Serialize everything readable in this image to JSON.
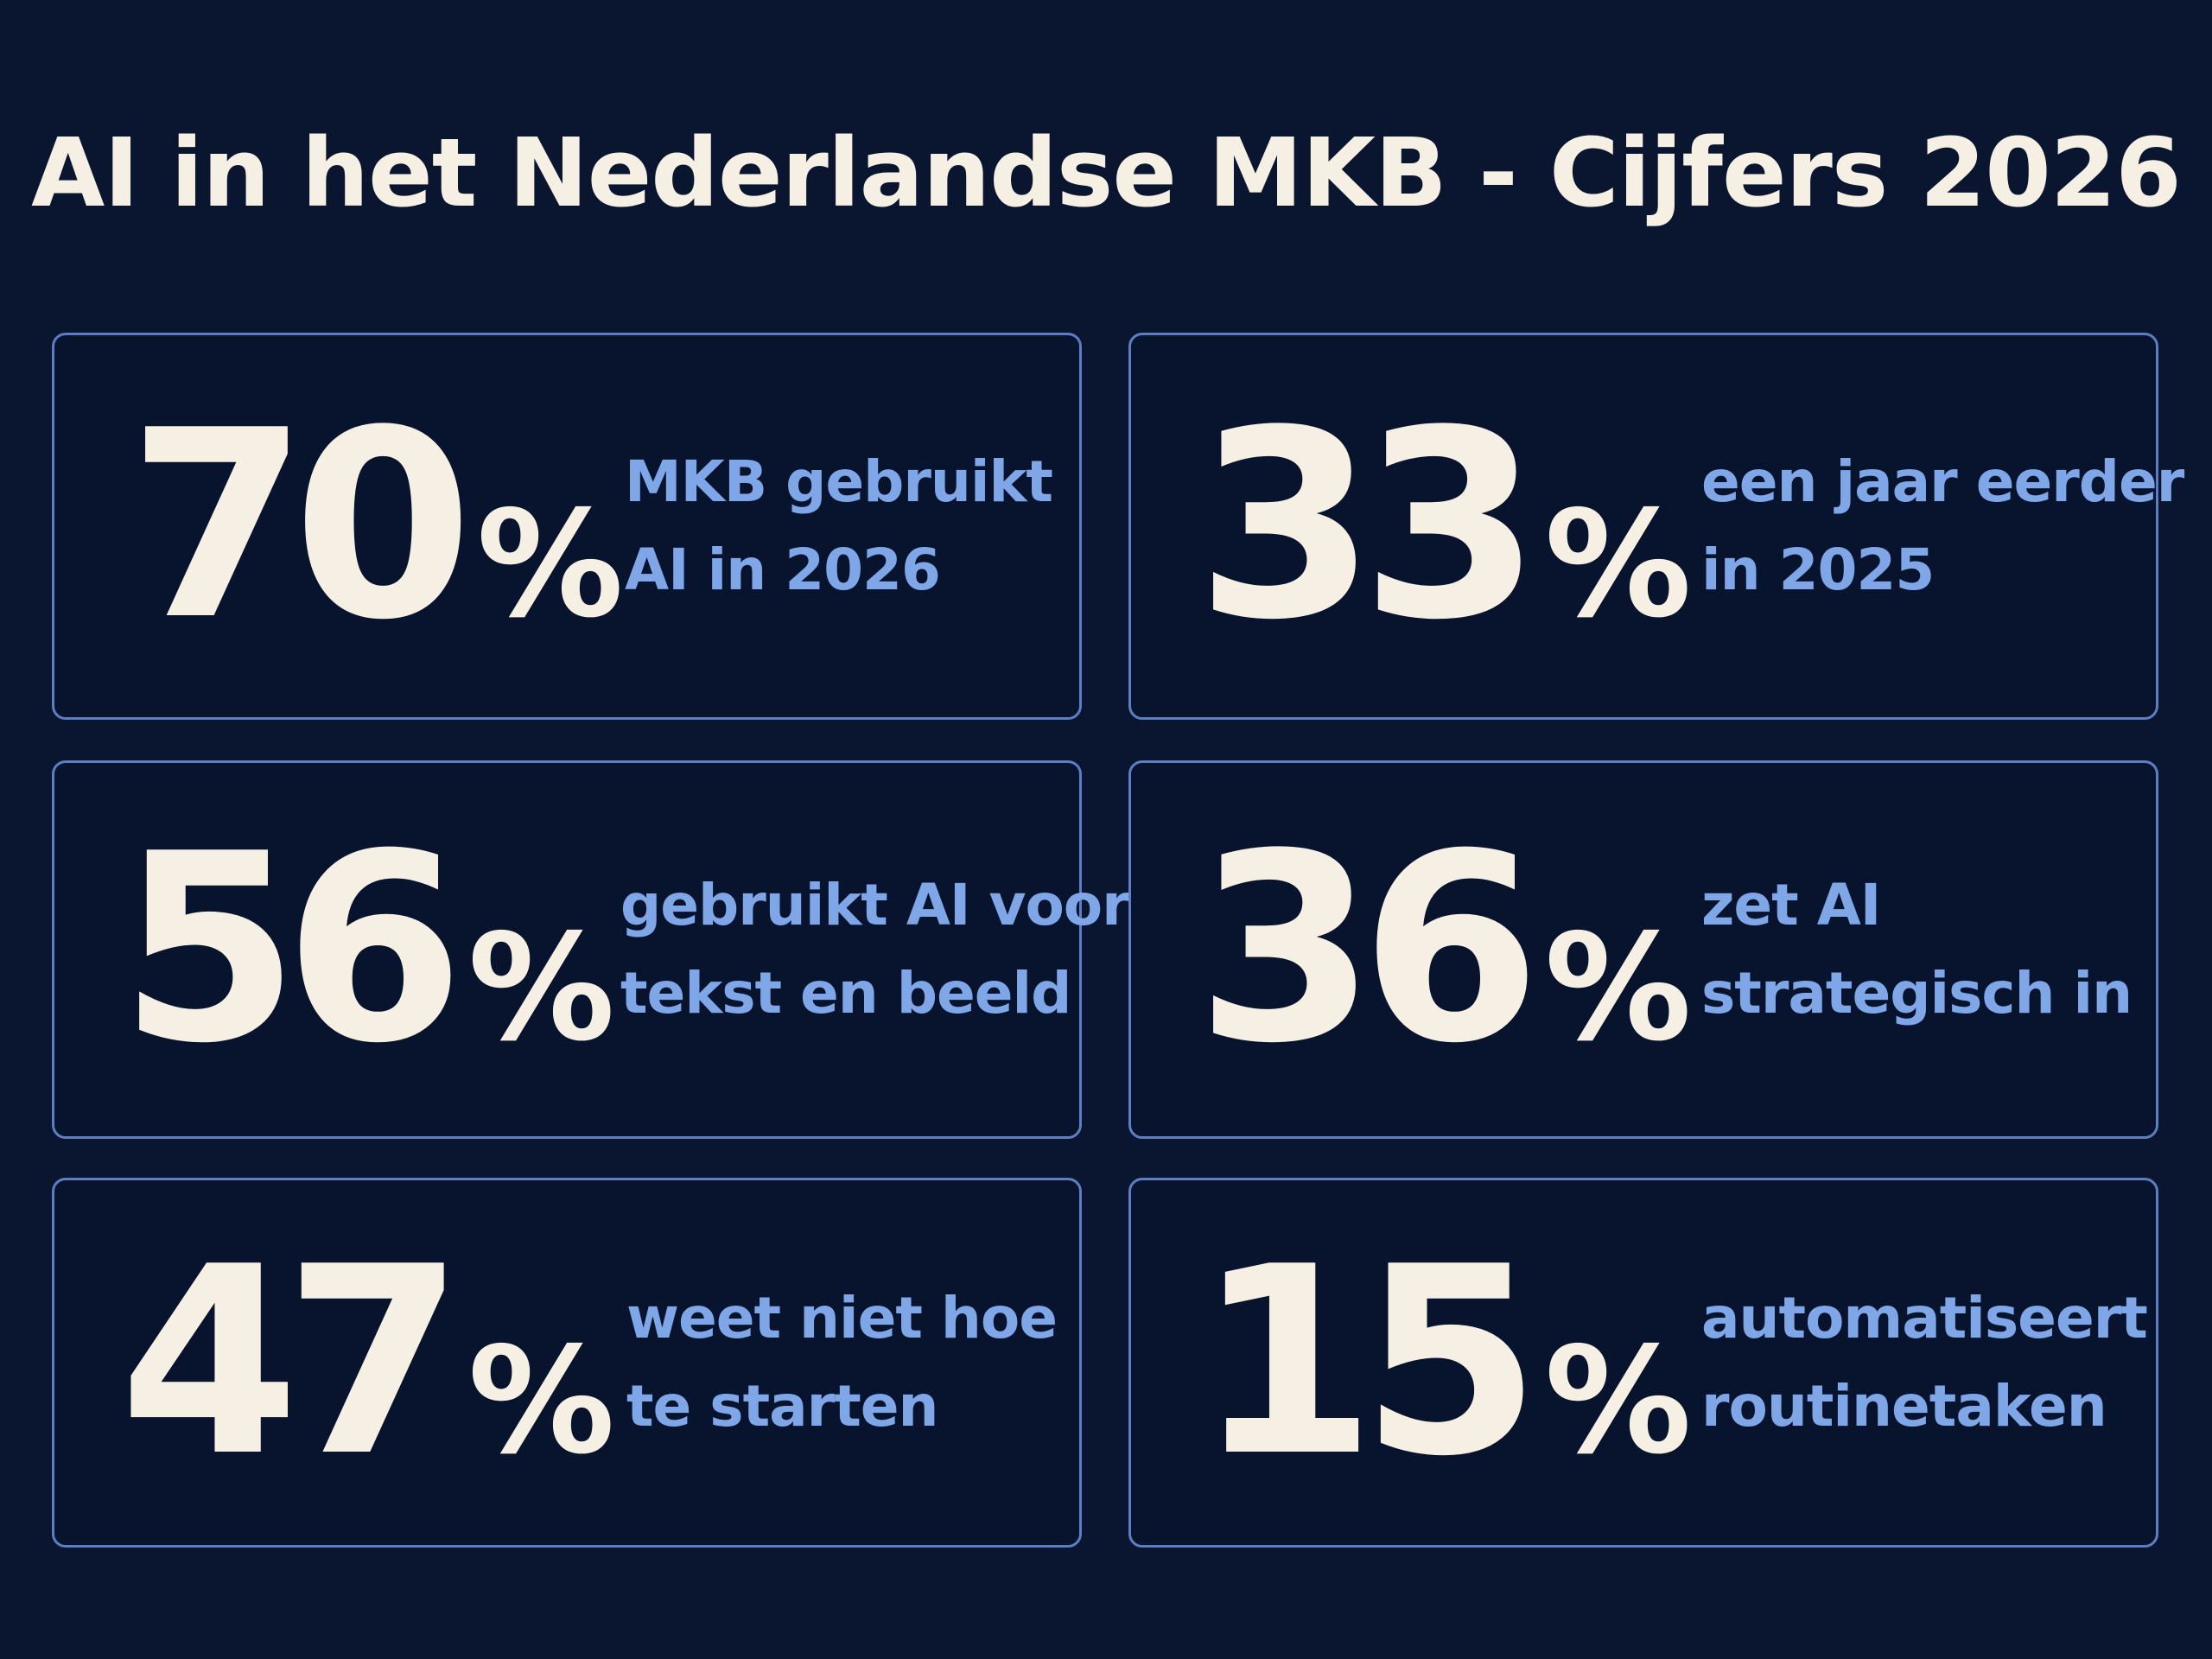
{
  "title": "AI in het Nederlandse MKB - Cijfers 2026",
  "stats": [
    {
      "number": "70",
      "percent_sign": "%",
      "line1": "MKB gebruikt",
      "line2": "AI in 2026"
    },
    {
      "number": "33",
      "percent_sign": "%",
      "line1": "een jaar eerder",
      "line2": "in 2025"
    },
    {
      "number": "56",
      "percent_sign": "%",
      "line1": "gebruikt AI voor",
      "line2": "tekst en beeld"
    },
    {
      "number": "36",
      "percent_sign": "%",
      "line1": "zet AI",
      "line2": "strategisch in"
    },
    {
      "number": "47",
      "percent_sign": "%",
      "line1": "weet niet hoe",
      "line2": "te starten"
    },
    {
      "number": "15",
      "percent_sign": "%",
      "line1": "automatiseert",
      "line2": "routinetaken"
    }
  ],
  "colors": {
    "background": "#0a1530",
    "card_border": "#5d7fc2",
    "number": "#f6f0e4",
    "description": "#7fa7e8"
  }
}
